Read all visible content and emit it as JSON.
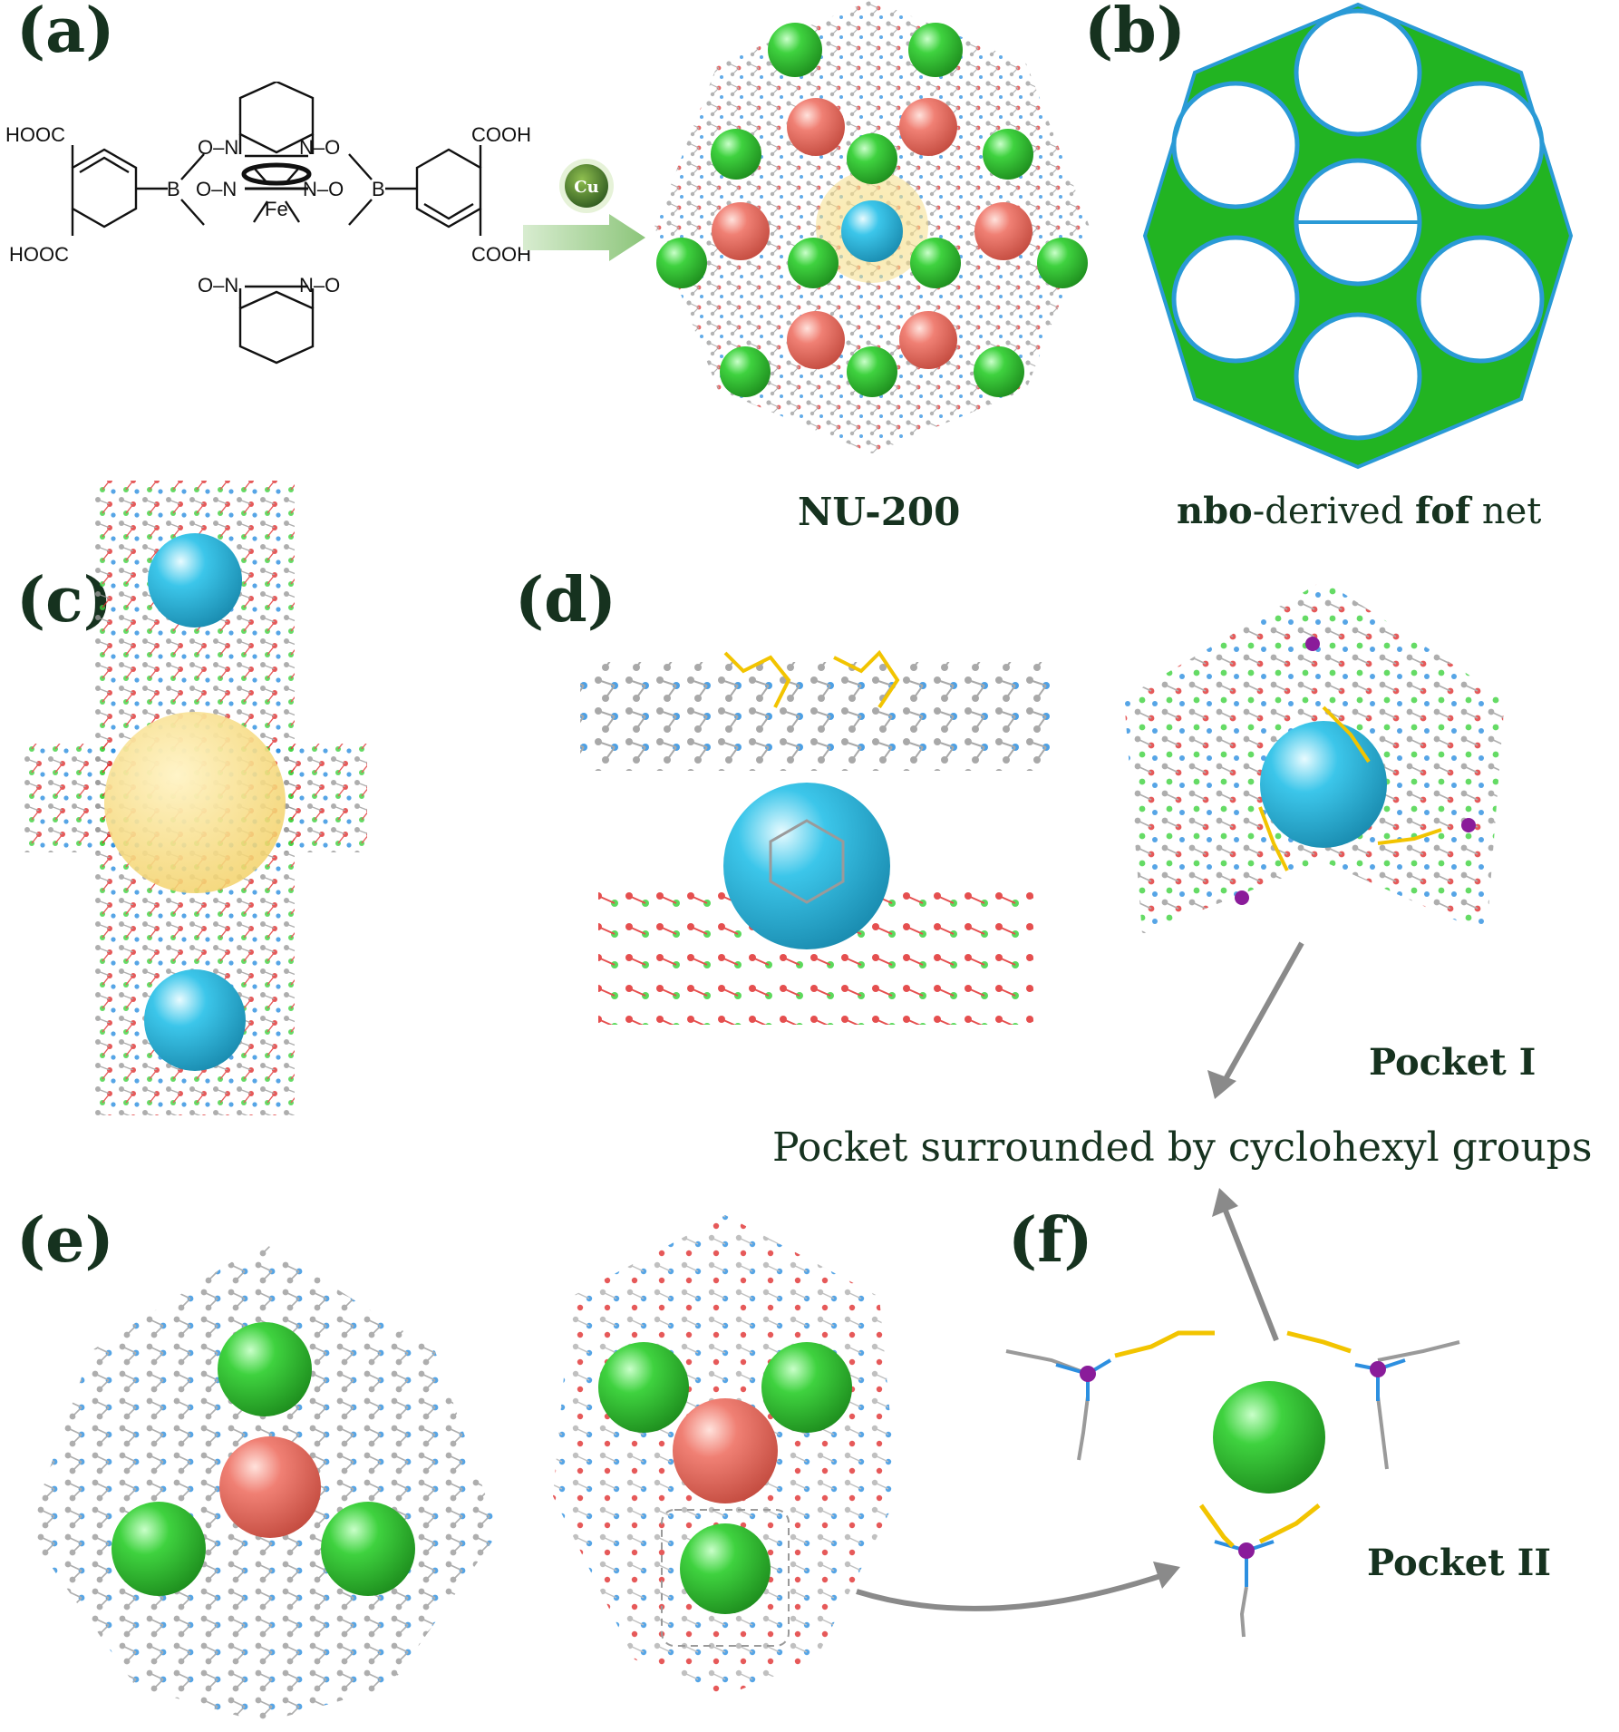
{
  "panels": {
    "a": {
      "label": "(a)",
      "caption": "NU-200",
      "metal_badge": "Cu",
      "chem_labels": {
        "hooc_top_left": "HOOC",
        "hooc_bottom_left": "HOOC",
        "cooh_top_right": "COOH",
        "cooh_bottom_right": "COOH",
        "boron_left": "B",
        "boron_right": "B",
        "iron": "Fe",
        "o_n_1": "O–N",
        "n_o_1": "N–O",
        "o_n_2": "O–N",
        "n_o_2": "N–O",
        "o_n_mid": "O–N",
        "n_o_mid": "N–O"
      }
    },
    "b": {
      "label": "(b)",
      "caption_bold_1": "nbo",
      "caption_mid": "-derived ",
      "caption_bold_2": "fof",
      "caption_end": " net"
    },
    "c": {
      "label": "(c)"
    },
    "d": {
      "label": "(d)",
      "pocket_label": "Pocket I"
    },
    "e": {
      "label": "(e)"
    },
    "f": {
      "label": "(f)",
      "pocket_label": "Pocket II"
    }
  },
  "annotation": "Pocket surrounded by cyclohexyl groups",
  "colors": {
    "cu_sphere_green": "#3fd23f",
    "salmon_sphere": "#f08074",
    "cyan_sphere": "#3cc6ea",
    "yellow_sphere": "#f6dc82",
    "net_blue": "#2a9ad6",
    "net_green": "#22b422",
    "label_text": "#16321f",
    "atom_grey": "#9a9a9a",
    "atom_red": "#e03030",
    "atom_blue": "#2c8fe0",
    "atom_purple": "#8a1c9a",
    "atom_yellow": "#f2c400"
  }
}
